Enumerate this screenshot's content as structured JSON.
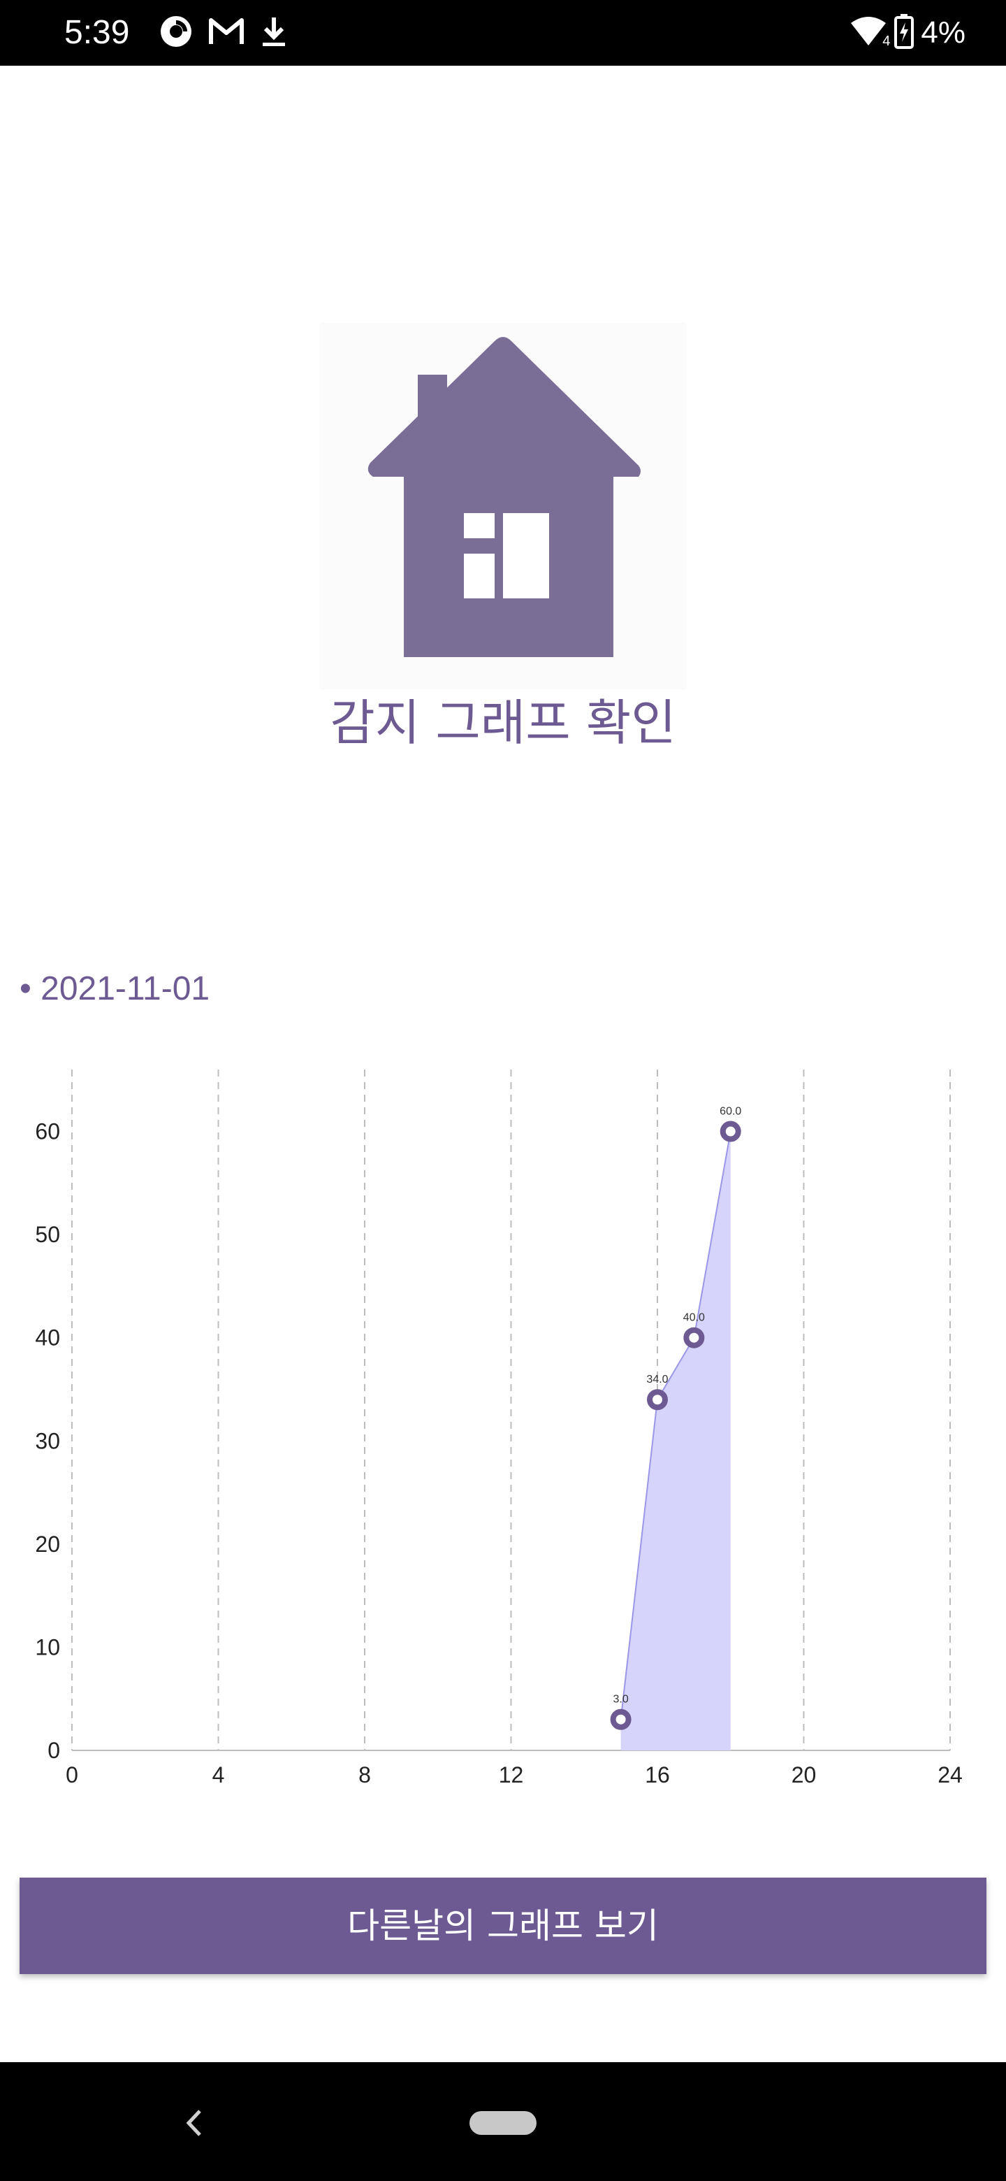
{
  "status_bar": {
    "time": "5:39",
    "battery": "4%",
    "signal_badge": "4",
    "icons_left": [
      "pocket-casts-icon",
      "gmail-icon",
      "download-icon"
    ],
    "icons_right": [
      "wifi-icon",
      "battery-charging-icon"
    ]
  },
  "hero": {
    "icon": "house-icon",
    "title": "감지 그래프 확인"
  },
  "date": {
    "label": "• 2021-11-01"
  },
  "chart_data": {
    "type": "area",
    "x": [
      15,
      16,
      17,
      18
    ],
    "values": [
      3.0,
      34.0,
      40.0,
      60.0
    ],
    "point_labels": [
      "3.0",
      "34.0",
      "40.0",
      "60.0"
    ],
    "xlim": [
      0,
      24
    ],
    "ylim": [
      0,
      66
    ],
    "x_ticks": [
      0,
      4,
      8,
      12,
      16,
      20,
      24
    ],
    "y_ticks": [
      0,
      10,
      20,
      30,
      40,
      50,
      60
    ],
    "grid": "vertical dashed",
    "colors": {
      "line": "#9b97e8",
      "fill": "#d6d4fb",
      "point": "#6e5a92"
    }
  },
  "button": {
    "label": "다른날의 그래프 보기"
  },
  "colors": {
    "accent": "#6e5a92",
    "house": "#7b6e96"
  },
  "nav_bar": {
    "back_icon": "back-chevron-icon",
    "home_icon": "home-pill-icon"
  }
}
